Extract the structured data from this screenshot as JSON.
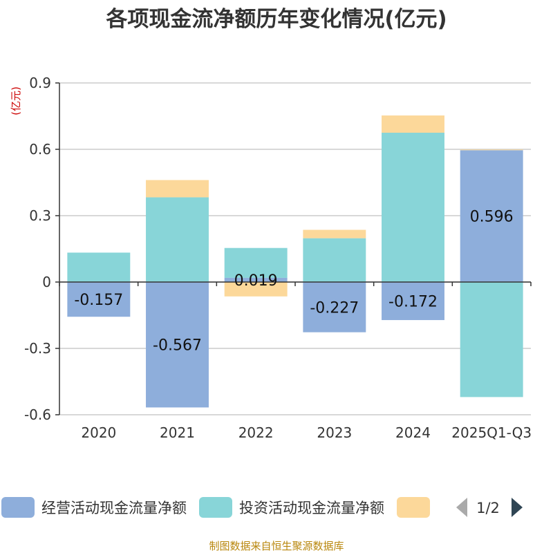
{
  "chart_data": {
    "type": "bar",
    "stacked": true,
    "title": "各项现金流净额历年变化情况(亿元)",
    "unit_label": "(亿元)",
    "categories": [
      "2020",
      "2021",
      "2022",
      "2023",
      "2024",
      "2025Q1-Q3"
    ],
    "ylim": [
      -0.6,
      0.9
    ],
    "yticks": [
      -0.6,
      -0.3,
      0,
      0.3,
      0.6,
      0.9
    ],
    "ytick_labels": [
      "-0.6",
      "-0.3",
      "0",
      "0.3",
      "0.6",
      "0.9"
    ],
    "grid": true,
    "series": [
      {
        "name": "经营活动现金流量净额",
        "color": "#8eaedb",
        "values": [
          -0.157,
          -0.567,
          0.019,
          -0.227,
          -0.172,
          0.596
        ],
        "labels": [
          "-0.157",
          "-0.567",
          "0.019",
          "-0.227",
          "-0.172",
          "0.596"
        ]
      },
      {
        "name": "投资活动现金流量净额",
        "color": "#88d5d8",
        "values": [
          0.133,
          0.383,
          0.135,
          0.198,
          0.675,
          -0.52
        ]
      },
      {
        "name": "",
        "color": "#fcd89a",
        "values": [
          0.0,
          0.078,
          -0.065,
          0.038,
          0.078,
          0.003
        ]
      }
    ],
    "legend": {
      "position": "bottom",
      "page_indicator": "1/2"
    },
    "source": "制图数据来自恒生聚源数据库"
  }
}
